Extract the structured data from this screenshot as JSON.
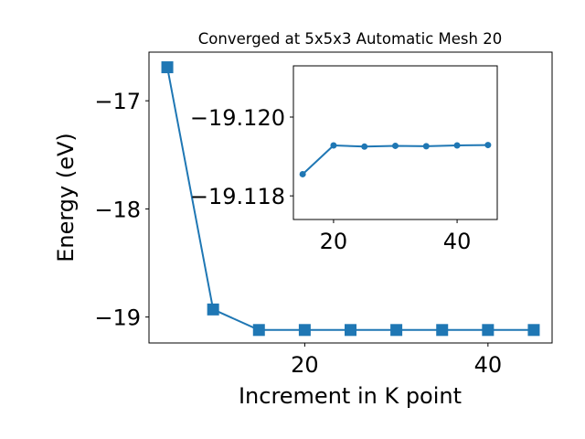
{
  "chart_data": [
    {
      "type": "line",
      "title": "Converged at 5x5x3 Automatic Mesh 20",
      "xlabel": "Increment in K point",
      "ylabel": "Energy (eV)",
      "xlim": [
        3.0,
        47.0
      ],
      "ylim": [
        -19.24,
        -16.55
      ],
      "x_ticks": [
        20,
        40
      ],
      "y_ticks": [
        -17,
        -18,
        -19
      ],
      "x_tick_labels": [
        "20",
        "40"
      ],
      "y_tick_labels": [
        "−17",
        "−18",
        "−19"
      ],
      "grid": false,
      "marker": "square",
      "color": "#1f77b4",
      "x": [
        5,
        10,
        15,
        20,
        25,
        30,
        35,
        40,
        45
      ],
      "y": [
        -16.69,
        -18.93,
        -19.12,
        -19.12,
        -19.12,
        -19.12,
        -19.12,
        -19.12,
        -19.12
      ]
    },
    {
      "type": "line",
      "title": "",
      "xlabel": "",
      "ylabel": "",
      "xlim": [
        13.5,
        46.5
      ],
      "ylim": [
        -19.1174,
        -19.1213
      ],
      "x_ticks": [
        20,
        40
      ],
      "y_ticks": [
        -19.12,
        -19.118
      ],
      "x_tick_labels": [
        "20",
        "40"
      ],
      "y_tick_labels": [
        "−19.120",
        "−19.118"
      ],
      "grid": false,
      "marker": "circle",
      "color": "#1f77b4",
      "x": [
        15,
        20,
        25,
        30,
        35,
        40,
        45
      ],
      "y": [
        -19.11855,
        -19.11928,
        -19.11925,
        -19.11927,
        -19.11926,
        -19.11928,
        -19.11929
      ]
    }
  ]
}
